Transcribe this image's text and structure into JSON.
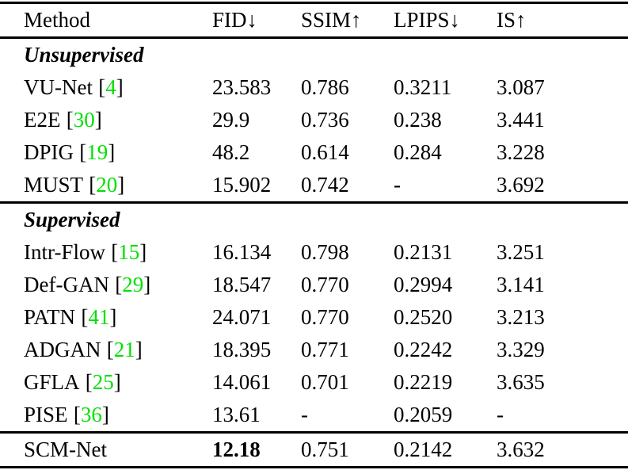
{
  "punct": {
    "open": "[",
    "close": "]"
  },
  "colors": {
    "citation_green": "#00E000"
  },
  "table": {
    "headers": [
      "Method",
      "FID↓",
      "SSIM↑",
      "LPIPS↓",
      "IS↑"
    ],
    "sections": [
      {
        "title": "Unsupervised",
        "rows": [
          {
            "method": "VU-Net",
            "cite": "4",
            "fid": "23.583",
            "ssim": "0.786",
            "lpips": "0.3211",
            "is": "3.087"
          },
          {
            "method": "E2E",
            "cite": "30",
            "fid": "29.9",
            "ssim": "0.736",
            "lpips": "0.238",
            "is": "3.441"
          },
          {
            "method": "DPIG",
            "cite": "19",
            "fid": "48.2",
            "ssim": "0.614",
            "lpips": "0.284",
            "is": "3.228"
          },
          {
            "method": "MUST",
            "cite": "20",
            "fid": "15.902",
            "ssim": "0.742",
            "lpips": "-",
            "is": "3.692"
          }
        ]
      },
      {
        "title": "Supervised",
        "rows": [
          {
            "method": "Intr-Flow",
            "cite": "15",
            "fid": "16.134",
            "ssim": "0.798",
            "lpips": "0.2131",
            "is": "3.251"
          },
          {
            "method": "Def-GAN",
            "cite": "29",
            "fid": "18.547",
            "ssim": "0.770",
            "lpips": "0.2994",
            "is": "3.141"
          },
          {
            "method": "PATN",
            "cite": "41",
            "fid": "24.071",
            "ssim": "0.770",
            "lpips": "0.2520",
            "is": "3.213"
          },
          {
            "method": "ADGAN",
            "cite": "21",
            "fid": "18.395",
            "ssim": "0.771",
            "lpips": "0.2242",
            "is": "3.329"
          },
          {
            "method": "GFLA",
            "cite": "25",
            "fid": "14.061",
            "ssim": "0.701",
            "lpips": "0.2219",
            "is": "3.635"
          },
          {
            "method": "PISE",
            "cite": "36",
            "fid": "13.61",
            "ssim": "-",
            "lpips": "0.2059",
            "is": "-"
          }
        ]
      }
    ],
    "final_row": {
      "method": "SCM-Net",
      "fid": "12.18",
      "ssim": "0.751",
      "lpips": "0.2142",
      "is": "3.632"
    }
  }
}
